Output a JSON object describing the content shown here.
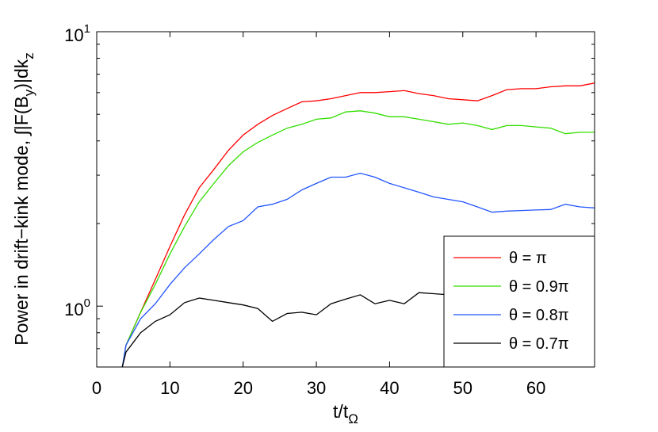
{
  "chart_data": {
    "type": "line",
    "xlabel": {
      "main": "t/t",
      "sub": "Ω"
    },
    "ylabel": {
      "part1": "Power in drift−kink mode, ∫|F(B",
      "sub1": "y",
      "part2": ")|dk",
      "sub2": "z"
    },
    "xlim": [
      0,
      68
    ],
    "ylim": [
      0.6,
      10
    ],
    "yscale": "log",
    "x_ticks": [
      0,
      10,
      20,
      30,
      40,
      50,
      60
    ],
    "x_tick_labels": [
      "0",
      "10",
      "20",
      "30",
      "40",
      "50",
      "60"
    ],
    "y_ticks": [
      {
        "value": 1,
        "base": "10",
        "exp": "0"
      },
      {
        "value": 10,
        "base": "10",
        "exp": "1"
      }
    ],
    "legend_position": "bottom-right",
    "series": [
      {
        "name": "θ = π",
        "color": "#ff0000",
        "points": [
          [
            3.5,
            0.6
          ],
          [
            4,
            0.72
          ],
          [
            6,
            0.95
          ],
          [
            8,
            1.25
          ],
          [
            10,
            1.65
          ],
          [
            12,
            2.15
          ],
          [
            14,
            2.7
          ],
          [
            16,
            3.15
          ],
          [
            18,
            3.7
          ],
          [
            20,
            4.2
          ],
          [
            22,
            4.6
          ],
          [
            24,
            4.95
          ],
          [
            26,
            5.25
          ],
          [
            28,
            5.55
          ],
          [
            30,
            5.6
          ],
          [
            32,
            5.7
          ],
          [
            34,
            5.85
          ],
          [
            36,
            6.0
          ],
          [
            38,
            6.0
          ],
          [
            40,
            6.05
          ],
          [
            42,
            6.1
          ],
          [
            44,
            5.95
          ],
          [
            46,
            5.85
          ],
          [
            48,
            5.7
          ],
          [
            50,
            5.65
          ],
          [
            52,
            5.6
          ],
          [
            54,
            5.85
          ],
          [
            56,
            6.15
          ],
          [
            58,
            6.2
          ],
          [
            60,
            6.2
          ],
          [
            62,
            6.3
          ],
          [
            64,
            6.35
          ],
          [
            66,
            6.35
          ],
          [
            68,
            6.5
          ]
        ]
      },
      {
        "name": "θ = 0.9π",
        "color": "#33dd00",
        "points": [
          [
            3.5,
            0.6
          ],
          [
            4,
            0.72
          ],
          [
            6,
            0.95
          ],
          [
            8,
            1.2
          ],
          [
            10,
            1.55
          ],
          [
            12,
            1.95
          ],
          [
            14,
            2.4
          ],
          [
            16,
            2.8
          ],
          [
            18,
            3.25
          ],
          [
            20,
            3.65
          ],
          [
            22,
            3.95
          ],
          [
            24,
            4.2
          ],
          [
            26,
            4.45
          ],
          [
            28,
            4.6
          ],
          [
            30,
            4.8
          ],
          [
            32,
            4.85
          ],
          [
            34,
            5.1
          ],
          [
            36,
            5.15
          ],
          [
            38,
            5.05
          ],
          [
            40,
            4.9
          ],
          [
            42,
            4.9
          ],
          [
            44,
            4.8
          ],
          [
            46,
            4.7
          ],
          [
            48,
            4.6
          ],
          [
            50,
            4.65
          ],
          [
            52,
            4.55
          ],
          [
            54,
            4.4
          ],
          [
            56,
            4.55
          ],
          [
            58,
            4.55
          ],
          [
            60,
            4.5
          ],
          [
            62,
            4.45
          ],
          [
            64,
            4.25
          ],
          [
            66,
            4.3
          ],
          [
            68,
            4.3
          ]
        ]
      },
      {
        "name": "θ = 0.8π",
        "color": "#2255ff",
        "points": [
          [
            3.5,
            0.6
          ],
          [
            4,
            0.72
          ],
          [
            6,
            0.9
          ],
          [
            8,
            1.02
          ],
          [
            10,
            1.2
          ],
          [
            12,
            1.38
          ],
          [
            14,
            1.55
          ],
          [
            16,
            1.75
          ],
          [
            18,
            1.95
          ],
          [
            20,
            2.05
          ],
          [
            22,
            2.3
          ],
          [
            24,
            2.35
          ],
          [
            26,
            2.45
          ],
          [
            28,
            2.65
          ],
          [
            30,
            2.8
          ],
          [
            32,
            2.95
          ],
          [
            34,
            2.95
          ],
          [
            36,
            3.05
          ],
          [
            38,
            2.95
          ],
          [
            40,
            2.8
          ],
          [
            42,
            2.7
          ],
          [
            44,
            2.6
          ],
          [
            46,
            2.5
          ],
          [
            48,
            2.45
          ],
          [
            50,
            2.4
          ],
          [
            52,
            2.3
          ],
          [
            54,
            2.2
          ],
          [
            56,
            2.22
          ],
          [
            58,
            2.23
          ],
          [
            60,
            2.24
          ],
          [
            62,
            2.25
          ],
          [
            64,
            2.35
          ],
          [
            66,
            2.3
          ],
          [
            68,
            2.28
          ]
        ]
      },
      {
        "name": "θ = 0.7π",
        "color": "#000000",
        "points": [
          [
            3.5,
            0.6
          ],
          [
            4,
            0.68
          ],
          [
            6,
            0.8
          ],
          [
            8,
            0.88
          ],
          [
            10,
            0.93
          ],
          [
            12,
            1.03
          ],
          [
            14,
            1.07
          ],
          [
            16,
            1.05
          ],
          [
            18,
            1.03
          ],
          [
            20,
            1.01
          ],
          [
            22,
            0.98
          ],
          [
            24,
            0.88
          ],
          [
            26,
            0.94
          ],
          [
            28,
            0.95
          ],
          [
            30,
            0.93
          ],
          [
            32,
            1.02
          ],
          [
            34,
            1.06
          ],
          [
            36,
            1.1
          ],
          [
            38,
            1.02
          ],
          [
            40,
            1.05
          ],
          [
            42,
            1.02
          ],
          [
            44,
            1.12
          ],
          [
            46,
            1.11
          ],
          [
            48,
            1.1
          ],
          [
            50,
            1.1
          ],
          [
            52,
            1.08
          ],
          [
            54,
            1.12
          ],
          [
            56,
            1.1
          ],
          [
            58,
            1.12
          ],
          [
            60,
            1.1
          ],
          [
            62,
            1.12
          ],
          [
            64,
            1.1
          ],
          [
            66,
            1.07
          ],
          [
            68,
            1.1
          ]
        ]
      }
    ]
  }
}
